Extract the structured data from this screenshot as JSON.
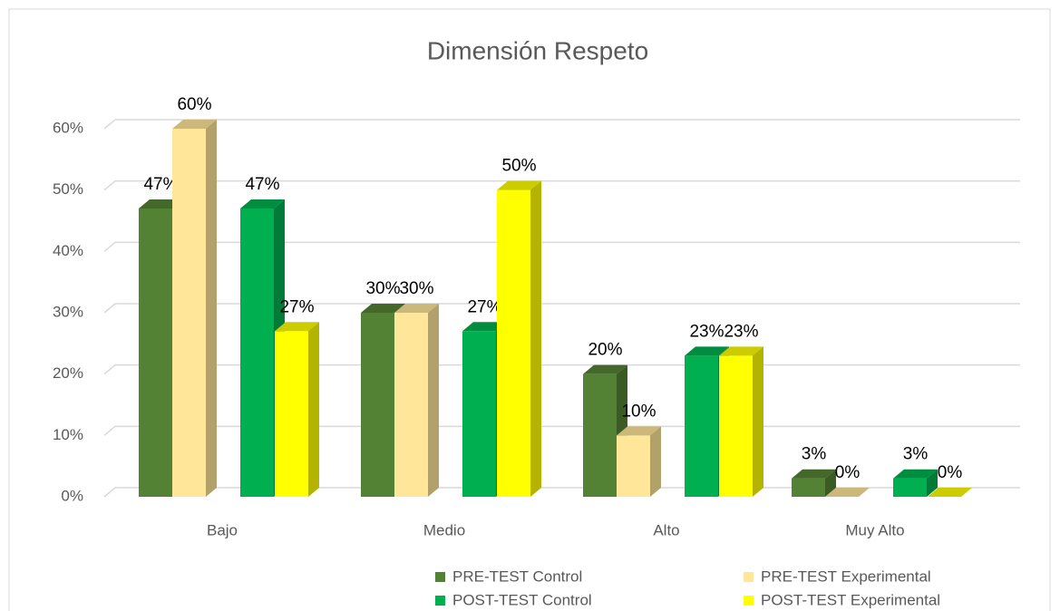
{
  "chart_data": {
    "type": "bar3d",
    "title": "Dimensión Respeto",
    "categories": [
      "Bajo",
      "Medio",
      "Alto",
      "Muy Alto"
    ],
    "series": [
      {
        "name": "PRE-TEST Control",
        "color": "#548235",
        "values": [
          47,
          30,
          20,
          3
        ],
        "value_labels": [
          "47%",
          "30%",
          "20%",
          "3%"
        ]
      },
      {
        "name": "PRE-TEST Experimental",
        "color": "#ffe699",
        "values": [
          60,
          30,
          10,
          0
        ],
        "value_labels": [
          "60%",
          "30%",
          "10%",
          "0%"
        ]
      },
      {
        "name": "POST-TEST Control",
        "color": "#00b050",
        "values": [
          47,
          27,
          23,
          3
        ],
        "value_labels": [
          "47%",
          "27%",
          "23%",
          "3%"
        ]
      },
      {
        "name": "POST-TEST Experimental",
        "color": "#ffff00",
        "values": [
          27,
          50,
          23,
          0
        ],
        "value_labels": [
          "27%",
          "50%",
          "23%",
          "0%"
        ]
      }
    ],
    "ylim": [
      0,
      60
    ],
    "yticks": [
      {
        "value": 0,
        "label": "0%"
      },
      {
        "value": 10,
        "label": "10%"
      },
      {
        "value": 20,
        "label": "20%"
      },
      {
        "value": 30,
        "label": "30%"
      },
      {
        "value": 40,
        "label": "40%"
      },
      {
        "value": 50,
        "label": "50%"
      },
      {
        "value": 60,
        "label": "60%"
      }
    ],
    "grid": true,
    "legend": "bottom"
  }
}
